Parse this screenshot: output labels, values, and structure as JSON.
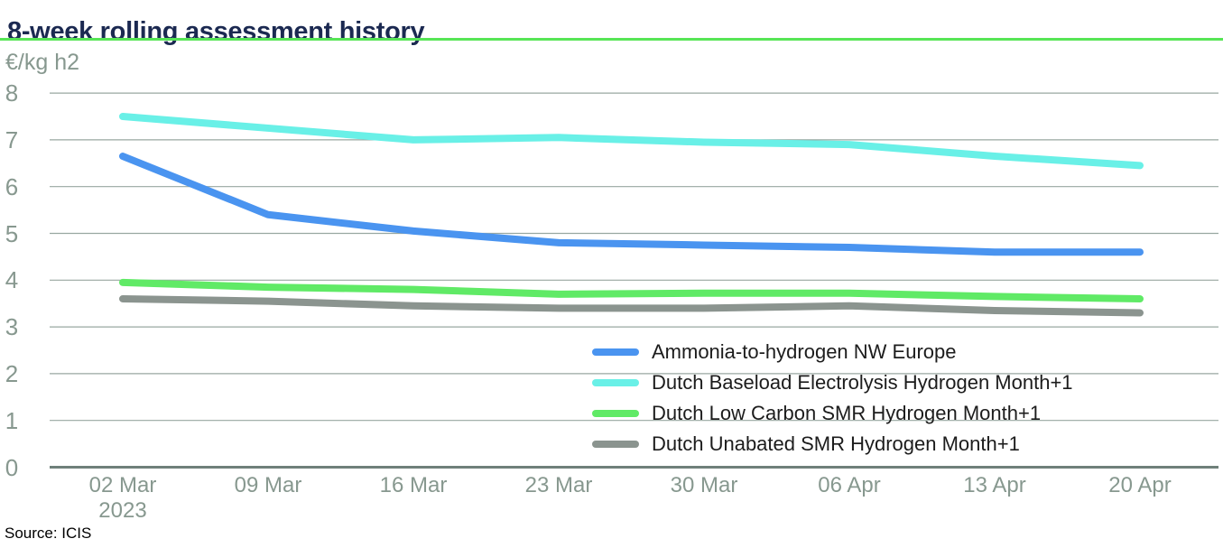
{
  "header": {
    "title": "8-week rolling assessment history",
    "unit_label": "€/kg h2",
    "accent_color": "#57e556",
    "title_color": "#1b2951"
  },
  "chart_data": {
    "type": "line",
    "title": "8-week rolling assessment history",
    "ylabel": "€/kg h2",
    "xlabel": "",
    "ylim": [
      0,
      8
    ],
    "yticks": [
      0,
      1,
      2,
      3,
      4,
      5,
      6,
      7,
      8
    ],
    "grid": "horizontal",
    "legend_position": "inside-right-bottom",
    "categories": [
      "02 Mar 2023",
      "09 Mar",
      "16 Mar",
      "23 Mar",
      "30 Mar",
      "06 Apr",
      "13 Apr",
      "20 Apr"
    ],
    "x_tick_lines": [
      [
        "02 Mar",
        "2023"
      ],
      [
        "09 Mar"
      ],
      [
        "16 Mar"
      ],
      [
        "23 Mar"
      ],
      [
        "30 Mar"
      ],
      [
        "06 Apr"
      ],
      [
        "13 Apr"
      ],
      [
        "20 Apr"
      ]
    ],
    "series": [
      {
        "name": "Ammonia-to-hydrogen NW Europe",
        "color": "#4a94f0",
        "values": [
          6.65,
          5.4,
          5.05,
          4.8,
          4.75,
          4.7,
          4.6,
          4.6
        ]
      },
      {
        "name": "Dutch Baseload Electrolysis Hydrogen Month+1",
        "color": "#69f0e7",
        "values": [
          7.5,
          7.25,
          7.0,
          7.05,
          6.95,
          6.9,
          6.65,
          6.45
        ]
      },
      {
        "name": "Dutch Low Carbon SMR Hydrogen Month+1",
        "color": "#60ea66",
        "values": [
          3.95,
          3.85,
          3.8,
          3.7,
          3.72,
          3.72,
          3.65,
          3.6
        ]
      },
      {
        "name": "Dutch Unabated SMR Hydrogen Month+1",
        "color": "#8b948f",
        "values": [
          3.6,
          3.55,
          3.45,
          3.4,
          3.4,
          3.45,
          3.35,
          3.3
        ]
      }
    ],
    "gridline_color": "#98a7a1",
    "axis_color": "#6f807a",
    "tick_label_color": "#87988f"
  },
  "footer": {
    "source": "Source: ICIS"
  }
}
